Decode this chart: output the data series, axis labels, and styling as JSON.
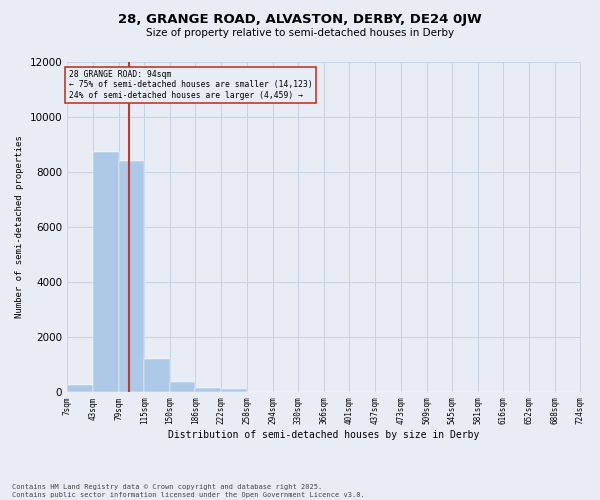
{
  "title_line1": "28, GRANGE ROAD, ALVASTON, DERBY, DE24 0JW",
  "title_line2": "Size of property relative to semi-detached houses in Derby",
  "xlabel": "Distribution of semi-detached houses by size in Derby",
  "ylabel": "Number of semi-detached properties",
  "footer_line1": "Contains HM Land Registry data © Crown copyright and database right 2025.",
  "footer_line2": "Contains public sector information licensed under the Open Government Licence v3.0.",
  "annotation_line1": "28 GRANGE ROAD: 94sqm",
  "annotation_line2": "← 75% of semi-detached houses are smaller (14,123)",
  "annotation_line3": "24% of semi-detached houses are larger (4,459) →",
  "property_size": 94,
  "bin_edges": [
    7,
    43,
    79,
    115,
    150,
    186,
    222,
    258,
    294,
    330,
    366,
    401,
    437,
    473,
    509,
    545,
    581,
    616,
    652,
    688,
    724
  ],
  "bin_labels": [
    "7sqm",
    "43sqm",
    "79sqm",
    "115sqm",
    "150sqm",
    "186sqm",
    "222sqm",
    "258sqm",
    "294sqm",
    "330sqm",
    "366sqm",
    "401sqm",
    "437sqm",
    "473sqm",
    "509sqm",
    "545sqm",
    "581sqm",
    "616sqm",
    "652sqm",
    "688sqm",
    "724sqm"
  ],
  "counts": [
    250,
    8700,
    8400,
    1200,
    350,
    150,
    90,
    0,
    0,
    0,
    0,
    0,
    0,
    0,
    0,
    0,
    0,
    0,
    0,
    0
  ],
  "bar_color": "#aec8e8",
  "vline_color": "#c0392b",
  "annotation_box_edgecolor": "#c0392b",
  "grid_color": "#c8d4e4",
  "background_color": "#e8edf5",
  "ylim": [
    0,
    12000
  ],
  "yticks": [
    0,
    2000,
    4000,
    6000,
    8000,
    10000,
    12000
  ],
  "xlim_left": 7,
  "xlim_right": 724
}
